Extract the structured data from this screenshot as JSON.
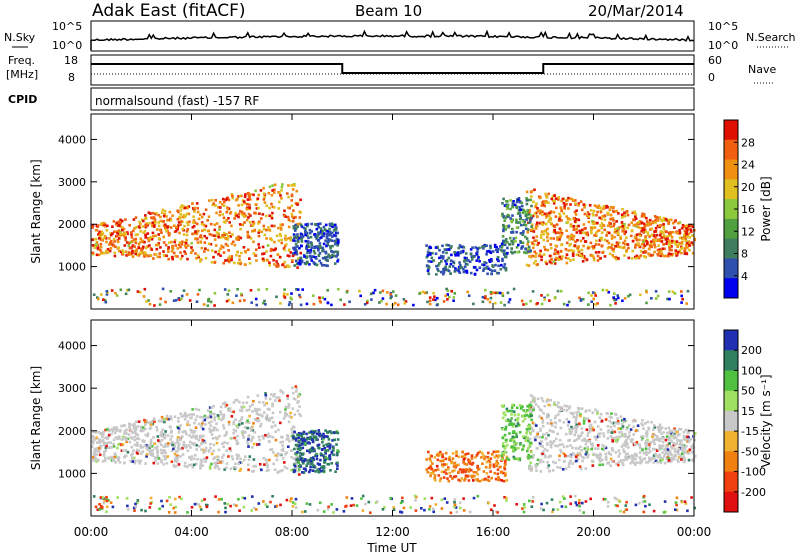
{
  "header": {
    "title": "Adak East (fitACF)",
    "beam": "Beam 10",
    "date": "20/Mar/2014"
  },
  "nsky_panel": {
    "label_left": "N.Sky",
    "label_right": "N.Search",
    "tick_top": "10^5",
    "tick_bottom": "10^0"
  },
  "freq_panel": {
    "label_left_1": "Freq.",
    "label_left_2": "[MHz]",
    "label_right": "Nave",
    "left_ticks": [
      "18",
      "8"
    ],
    "right_ticks": [
      "60",
      "0"
    ]
  },
  "cpid_panel": {
    "label": "CPID",
    "program": "normalsound (fast) -157 RF"
  },
  "x_axis": {
    "label": "Time UT",
    "ticks": [
      "00:00",
      "04:00",
      "08:00",
      "12:00",
      "16:00",
      "20:00",
      "00:00"
    ],
    "range_hours": [
      0,
      24
    ]
  },
  "chart_data": [
    {
      "type": "heatmap",
      "name": "power",
      "ylabel": "Slant Range [km]",
      "ylim": [
        0,
        4600
      ],
      "yticks": [
        "1000",
        "2000",
        "3000",
        "4000"
      ],
      "colorbar_label": "Power [dB]",
      "colorbar_ticks": [
        "4",
        "8",
        "12",
        "16",
        "20",
        "24",
        "28"
      ],
      "colorbar_range": [
        0,
        32
      ],
      "colors": [
        "#0000ee",
        "#3050b0",
        "#3e7e5e",
        "#50a040",
        "#8cc83c",
        "#e0c020",
        "#f09010",
        "#f06010",
        "#e01000"
      ]
    },
    {
      "type": "heatmap",
      "name": "velocity",
      "ylabel": "Slant Range [km]",
      "ylim": [
        0,
        4600
      ],
      "yticks": [
        "1000",
        "2000",
        "3000",
        "4000"
      ],
      "colorbar_label": "Velocity [m s⁻¹]",
      "colorbar_ticks": [
        "200",
        "100",
        "50",
        "15",
        "-15",
        "-50",
        "-100",
        "-200"
      ],
      "colorbar_range": [
        -250,
        250
      ],
      "colors": [
        "#e01010",
        "#f04010",
        "#f08010",
        "#f0b030",
        "#c8c8c8",
        "#a0e060",
        "#50c040",
        "#308060",
        "#2030b0"
      ]
    }
  ]
}
